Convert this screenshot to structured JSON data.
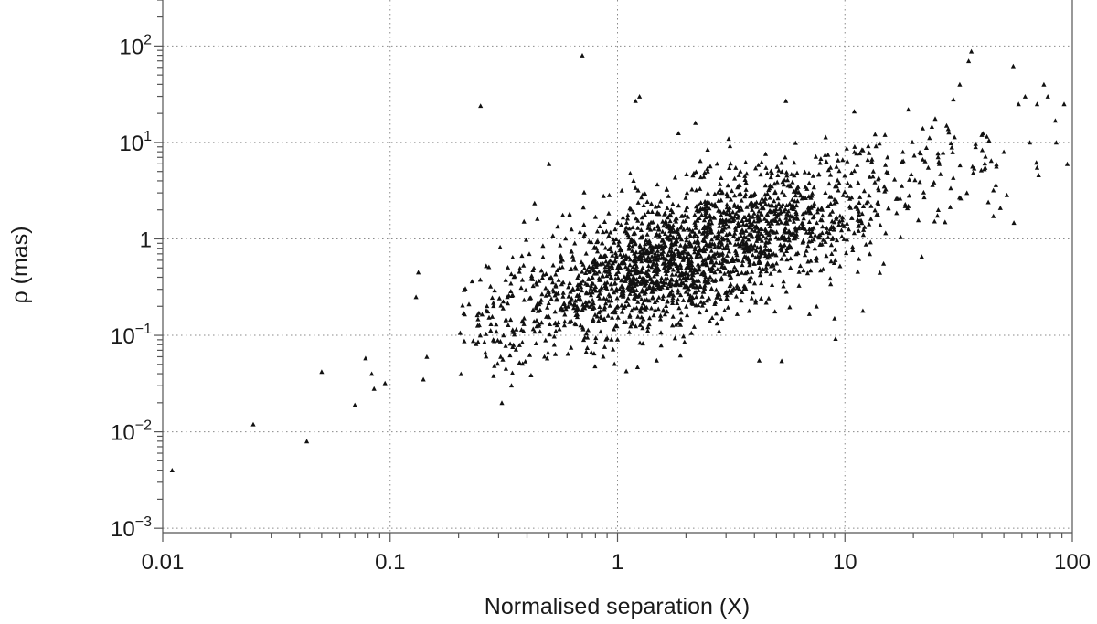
{
  "chart_data": {
    "type": "scatter",
    "x_scale": "log",
    "y_scale": "log",
    "xlabel": "Normalised separation (X)",
    "ylabel": "ρ (mas)",
    "xlim": [
      0.01,
      100
    ],
    "ylim": [
      0.0009,
      300
    ],
    "x_ticks": [
      {
        "value": 0.01,
        "label": "0.01"
      },
      {
        "value": 0.1,
        "label": "0.1"
      },
      {
        "value": 1,
        "label": "1"
      },
      {
        "value": 10,
        "label": "10"
      },
      {
        "value": 100,
        "label": "100"
      }
    ],
    "y_ticks": [
      {
        "value": 0.001,
        "base": "10",
        "exp": "−3"
      },
      {
        "value": 0.01,
        "base": "10",
        "exp": "−2"
      },
      {
        "value": 0.1,
        "base": "10",
        "exp": "−1"
      },
      {
        "value": 1,
        "base": "1",
        "exp": ""
      },
      {
        "value": 10,
        "base": "10",
        "exp": "1"
      },
      {
        "value": 100,
        "base": "10",
        "exp": "2"
      }
    ],
    "grid": true,
    "marker": "triangle",
    "marker_color": "#111111",
    "outliers": [
      [
        0.011,
        0.004
      ],
      [
        0.025,
        0.012
      ],
      [
        0.043,
        0.008
      ],
      [
        0.05,
        0.042
      ],
      [
        0.07,
        0.019
      ],
      [
        0.078,
        0.058
      ],
      [
        0.083,
        0.04
      ],
      [
        0.085,
        0.028
      ],
      [
        0.095,
        0.032
      ],
      [
        0.13,
        0.25
      ],
      [
        0.133,
        0.45
      ],
      [
        0.14,
        0.035
      ],
      [
        0.145,
        0.06
      ],
      [
        0.25,
        24
      ],
      [
        0.31,
        0.02
      ],
      [
        0.5,
        6
      ],
      [
        0.7,
        80
      ],
      [
        1.25,
        30
      ],
      [
        1.2,
        27
      ],
      [
        2.2,
        16
      ],
      [
        5.5,
        27
      ],
      [
        4.2,
        0.055
      ],
      [
        9.0,
        0.15
      ],
      [
        12,
        0.18
      ],
      [
        7.5,
        0.2
      ],
      [
        11,
        21
      ],
      [
        19,
        22
      ],
      [
        22,
        14
      ],
      [
        30,
        28
      ],
      [
        32,
        40
      ],
      [
        35,
        70
      ],
      [
        36,
        88
      ],
      [
        45,
        3.2
      ],
      [
        55,
        62
      ],
      [
        58,
        25
      ],
      [
        62,
        30
      ],
      [
        65,
        10
      ],
      [
        70,
        25
      ],
      [
        75,
        40
      ],
      [
        78,
        30
      ],
      [
        85,
        10
      ],
      [
        92,
        25
      ],
      [
        95,
        6
      ],
      [
        70,
        5.5
      ],
      [
        50,
        8
      ],
      [
        40,
        12
      ],
      [
        26,
        6
      ],
      [
        28,
        15
      ],
      [
        18,
        8
      ],
      [
        15,
        12
      ]
    ],
    "cluster": {
      "approx_n_points": 2300,
      "center": [
        2.0,
        0.7
      ],
      "x_range": [
        0.2,
        100
      ],
      "y_range": [
        0.03,
        20
      ],
      "trend": "rho increases roughly linearly with X on log-log axes"
    }
  }
}
